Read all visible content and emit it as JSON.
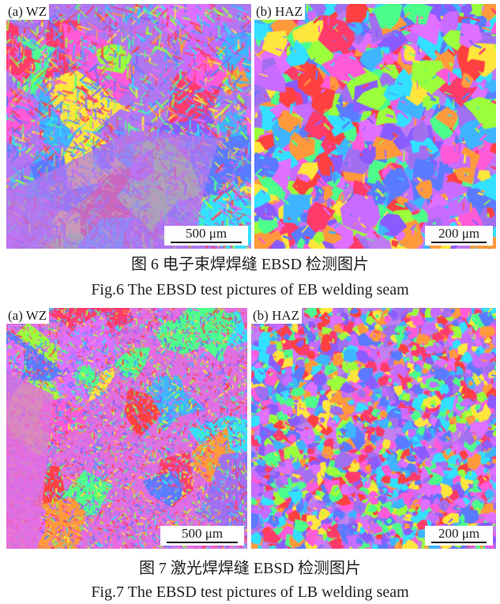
{
  "figures": [
    {
      "panels": [
        {
          "label": "(a) WZ",
          "scale": "500 μm",
          "texture": "dendritic"
        },
        {
          "label": "(b) HAZ",
          "scale": "200 μm",
          "texture": "coarse-grains"
        }
      ],
      "caption_cn": "图 6  电子束焊焊缝 EBSD 检测图片",
      "caption_en": "Fig.6  The EBSD test pictures of EB welding seam"
    },
    {
      "panels": [
        {
          "label": "(a) WZ",
          "scale": "500 μm",
          "texture": "fine-needles"
        },
        {
          "label": "(b) HAZ",
          "scale": "200 μm",
          "texture": "fine-grains"
        }
      ],
      "caption_cn": "图 7  激光焊焊缝 EBSD 检测图片",
      "caption_en": "Fig.7  The EBSD test pictures of LB welding seam"
    }
  ],
  "palette": [
    "#ff3b6b",
    "#ff5ad8",
    "#c86bff",
    "#8a5cff",
    "#5a7bff",
    "#3fb4ff",
    "#33e0ff",
    "#4dff8a",
    "#9bff3c",
    "#ffe63c",
    "#ff9a3c",
    "#ff4040",
    "#e070ff",
    "#a070f0"
  ]
}
